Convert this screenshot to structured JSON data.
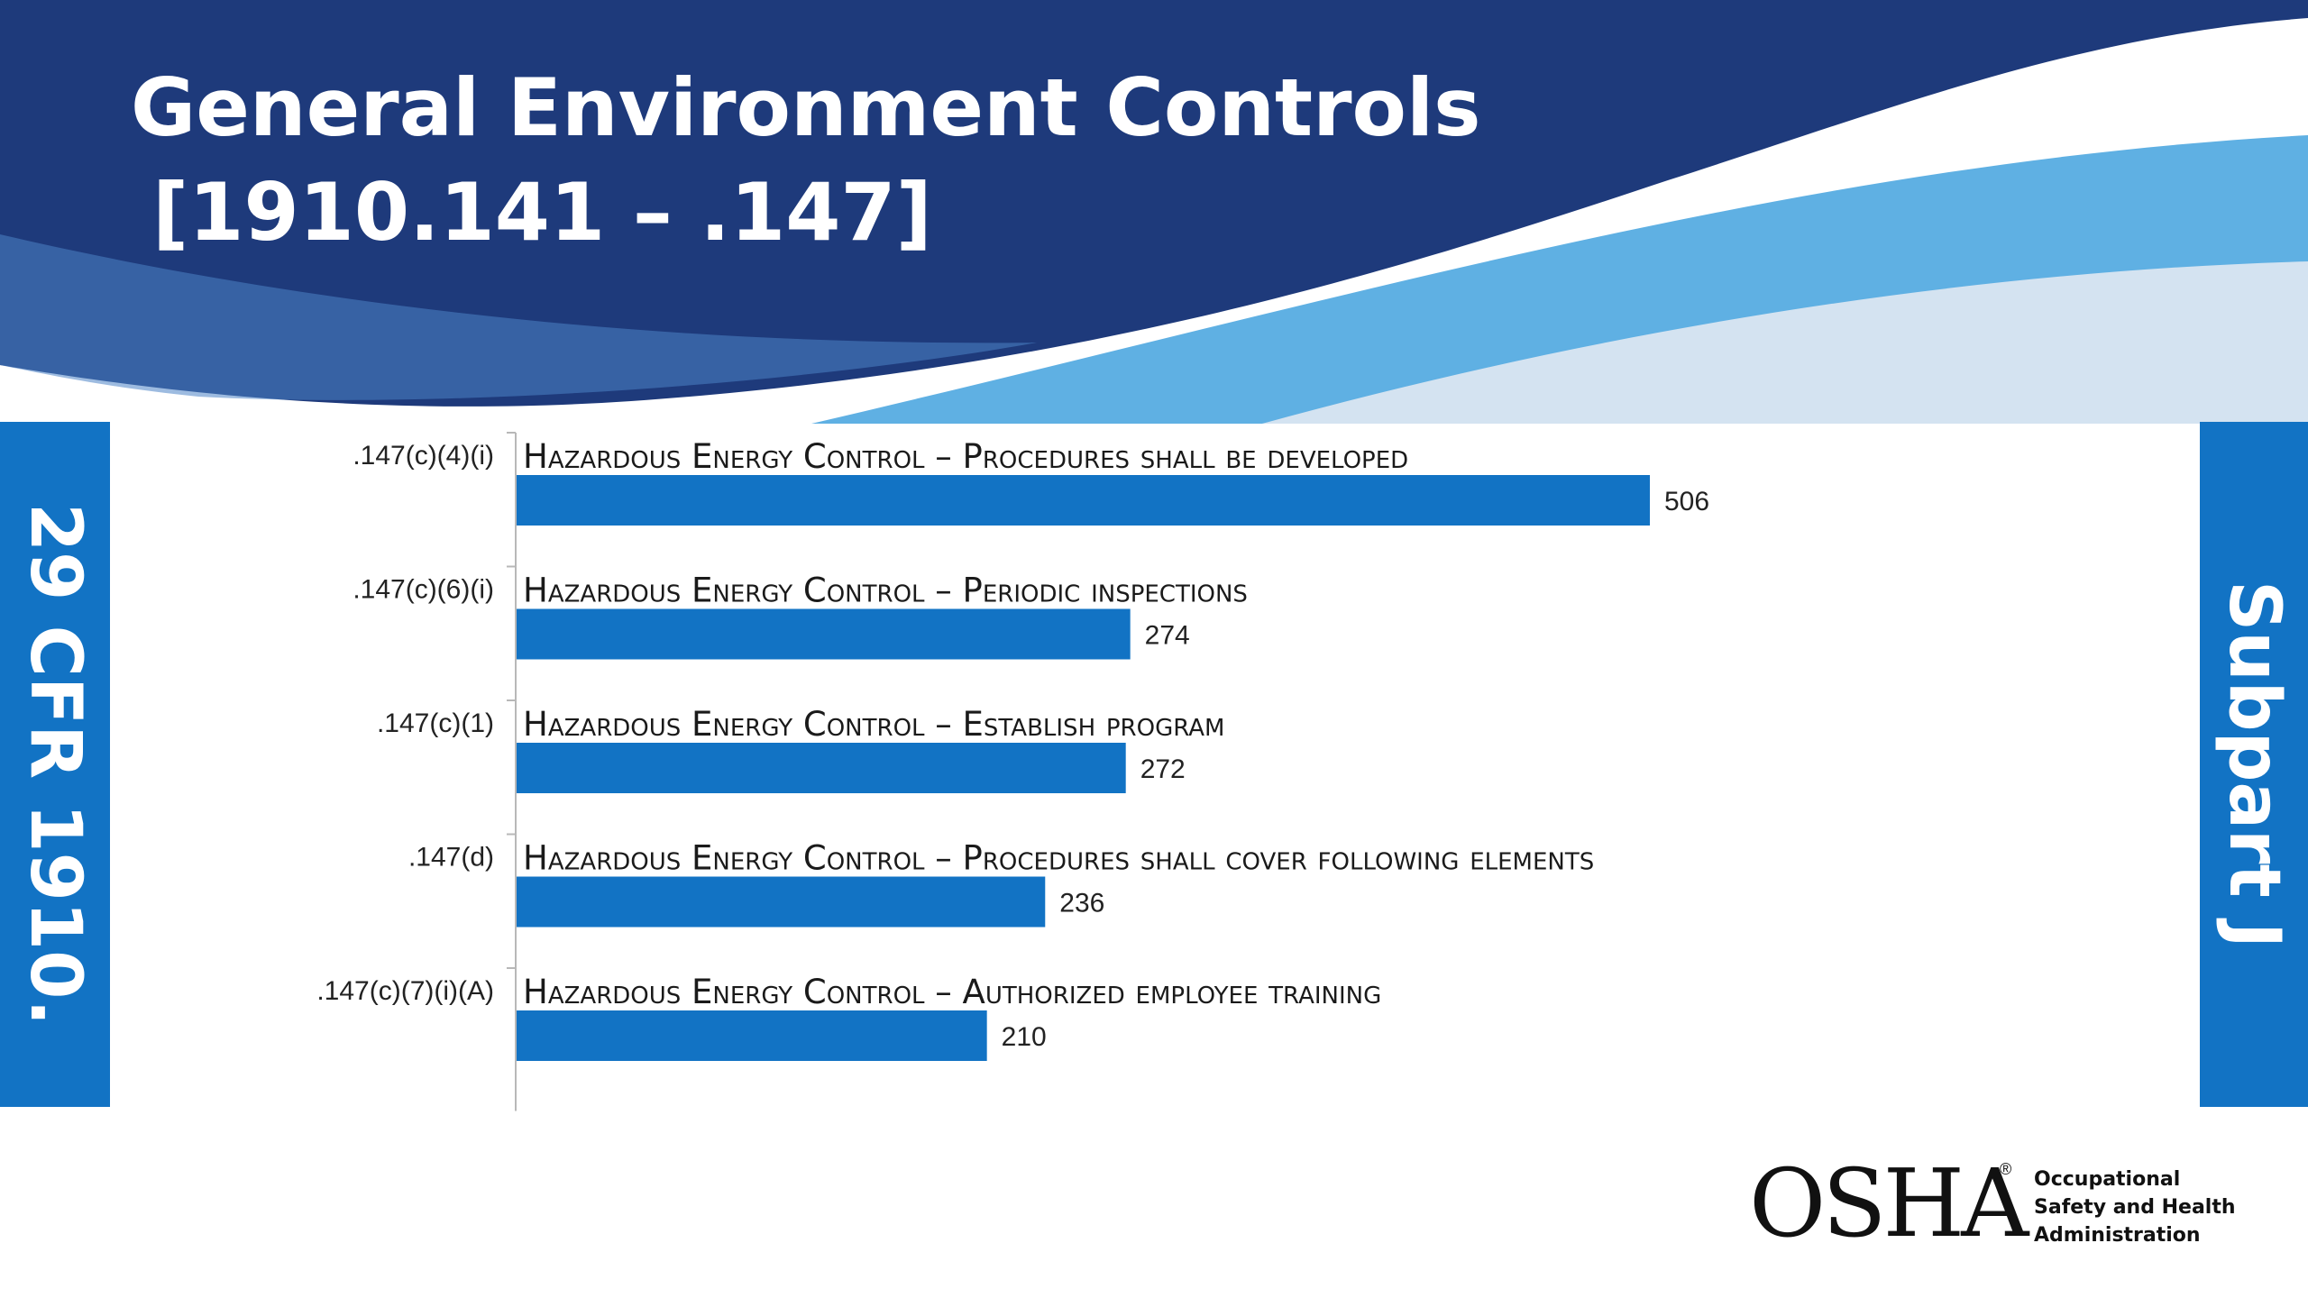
{
  "slide": {
    "title_line1": "General Environment Controls",
    "title_line2": "[1910.141 – .147]",
    "left_tab": "29 CFR 1910.",
    "right_tab": "Subpart J",
    "colors": {
      "navy": "#1e3a7b",
      "bar_blue": "#1273c4",
      "light_blue": "#5fb0e3",
      "pale_blue": "#cfe0f0"
    }
  },
  "logo": {
    "wordmark": "OSHA",
    "registered": "®",
    "line1": "Occupational",
    "line2": "Safety and Health",
    "line3": "Administration"
  },
  "chart_data": {
    "type": "bar",
    "orientation": "horizontal",
    "categories": [
      ".147(c)(4)(i)",
      ".147(c)(6)(i)",
      ".147(c)(1)",
      ".147(d)",
      ".147(c)(7)(i)(A)"
    ],
    "descriptions": [
      "Hazardous Energy Control – Procedures shall be developed",
      "Hazardous Energy Control – Periodic inspections",
      "Hazardous Energy Control – Establish program",
      "Hazardous Energy Control – Procedures shall cover following elements",
      "Hazardous Energy Control – Authorized employee training"
    ],
    "values": [
      506,
      274,
      272,
      236,
      210
    ],
    "bar_color": "#1273c4",
    "xlim": [
      0,
      506
    ]
  }
}
